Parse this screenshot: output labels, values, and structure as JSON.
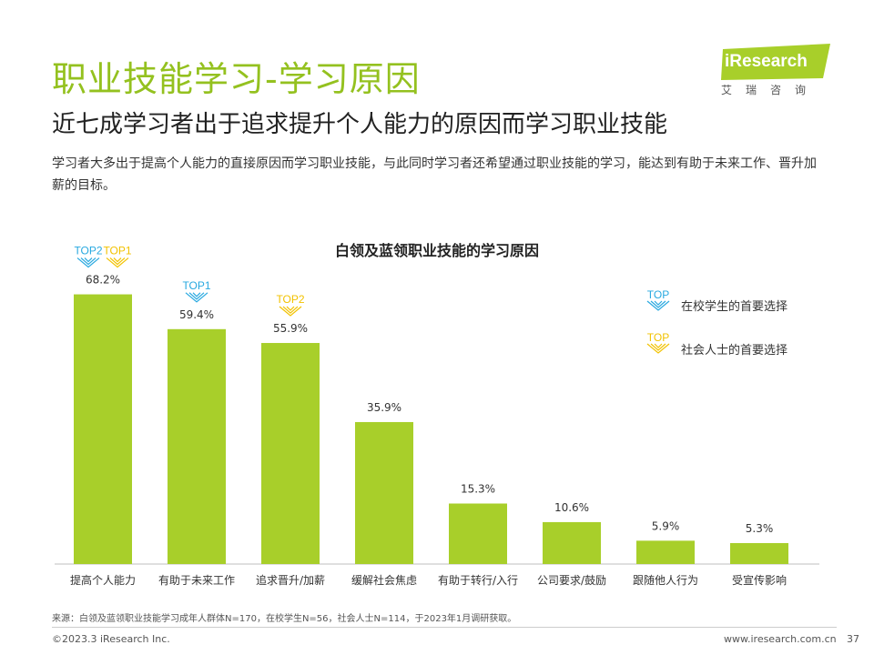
{
  "header": {
    "title": "职业技能学习-学习原因",
    "subtitle": "近七成学习者出于追求提升个人能力的原因而学习职业技能",
    "description": "学习者大多出于提高个人能力的直接原因而学习职业技能，与此同时学习者还希望通过职业技能的学习，能达到有助于未来工作、晋升加薪的目标。"
  },
  "logo": {
    "brand": "iResearch",
    "cn": "艾瑞咨询"
  },
  "legend": {
    "items": [
      {
        "badge": "TOP",
        "label": "在校学生的首要选择",
        "color": "#29a9e0"
      },
      {
        "badge": "TOP",
        "label": "社会人士的首要选择",
        "color": "#f2c200"
      }
    ]
  },
  "chart_data": {
    "type": "bar",
    "title": "白领及蓝领职业技能的学习原因",
    "categories": [
      "提高个人能力",
      "有助于未来工作",
      "追求晋升/加薪",
      "缓解社会焦虑",
      "有助于转行/入行",
      "公司要求/鼓励",
      "跟随他人行为",
      "受宣传影响"
    ],
    "values": [
      68.2,
      59.4,
      55.9,
      35.9,
      15.3,
      10.6,
      5.9,
      5.3
    ],
    "value_labels": [
      "68.2%",
      "59.4%",
      "55.9%",
      "35.9%",
      "15.3%",
      "10.6%",
      "5.9%",
      "5.3%"
    ],
    "ylim": [
      0,
      75
    ],
    "grid": false,
    "bar_color": "#a8cf2a",
    "badges": [
      {
        "category_index": 0,
        "items": [
          {
            "text": "TOP2",
            "color": "#29a9e0"
          },
          {
            "text": "TOP1",
            "color": "#f2c200"
          }
        ]
      },
      {
        "category_index": 1,
        "items": [
          {
            "text": "TOP1",
            "color": "#29a9e0"
          }
        ]
      },
      {
        "category_index": 2,
        "items": [
          {
            "text": "TOP2",
            "color": "#f2c200"
          }
        ]
      }
    ]
  },
  "footer": {
    "source": "来源：白领及蓝领职业技能学习成年人群体N=170，在校学生N=56，社会人士N=114，于2023年1月调研获取。",
    "copyright": "©2023.3 iResearch Inc.",
    "website": "www.iresearch.com.cn",
    "page": "37"
  }
}
